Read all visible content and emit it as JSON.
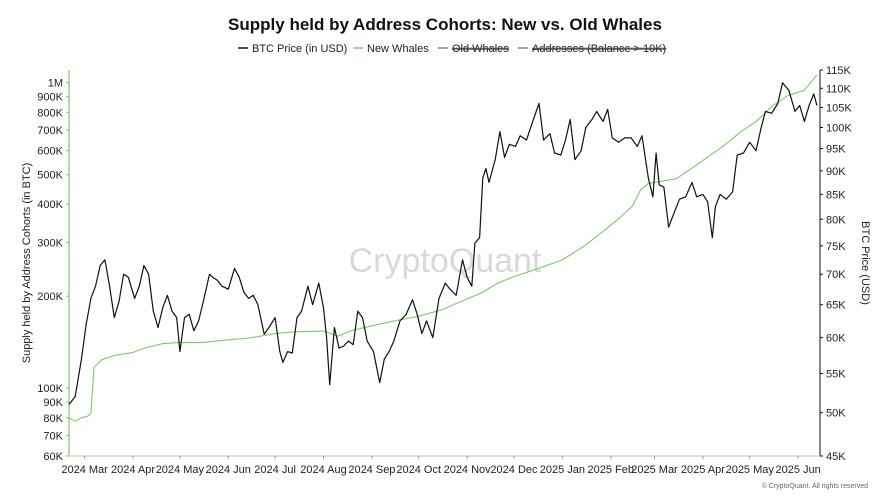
{
  "chart_data": {
    "type": "line",
    "title": "Supply held by Address Cohorts: New vs. Old Whales",
    "watermark": "CryptoQuant",
    "copyright": "© CryptoQuant. All rights reserved",
    "legend": [
      {
        "name": "BTC Price (in USD)",
        "color": "#111111",
        "hidden": false
      },
      {
        "name": "New Whales",
        "color": "#7cc96a",
        "hidden": false
      },
      {
        "name": "Old Whales",
        "color": "#888888",
        "hidden": true
      },
      {
        "name": "Addresses (Balance > 10K)",
        "color": "#888888",
        "hidden": true
      }
    ],
    "y_left": {
      "label": "Supply held by Address Cohorts (in BTC)",
      "scale": "log",
      "range": [
        60000,
        1100000
      ],
      "ticks": [
        {
          "v": 60000,
          "label": "60K"
        },
        {
          "v": 70000,
          "label": "70K"
        },
        {
          "v": 80000,
          "label": "80K"
        },
        {
          "v": 90000,
          "label": "90K"
        },
        {
          "v": 100000,
          "label": "100K"
        },
        {
          "v": 200000,
          "label": "200K"
        },
        {
          "v": 300000,
          "label": "300K"
        },
        {
          "v": 400000,
          "label": "400K"
        },
        {
          "v": 500000,
          "label": "500K"
        },
        {
          "v": 600000,
          "label": "600K"
        },
        {
          "v": 700000,
          "label": "700K"
        },
        {
          "v": 800000,
          "label": "800K"
        },
        {
          "v": 900000,
          "label": "900K"
        },
        {
          "v": 1000000,
          "label": "1M"
        }
      ]
    },
    "y_right": {
      "label": "BTC Price (USD)",
      "scale": "log",
      "range": [
        45000,
        115000
      ],
      "ticks": [
        {
          "v": 45000,
          "label": "45K"
        },
        {
          "v": 50000,
          "label": "50K"
        },
        {
          "v": 55000,
          "label": "55K"
        },
        {
          "v": 60000,
          "label": "60K"
        },
        {
          "v": 65000,
          "label": "65K"
        },
        {
          "v": 70000,
          "label": "70K"
        },
        {
          "v": 75000,
          "label": "75K"
        },
        {
          "v": 80000,
          "label": "80K"
        },
        {
          "v": 85000,
          "label": "85K"
        },
        {
          "v": 90000,
          "label": "90K"
        },
        {
          "v": 95000,
          "label": "95K"
        },
        {
          "v": 100000,
          "label": "100K"
        },
        {
          "v": 105000,
          "label": "105K"
        },
        {
          "v": 110000,
          "label": "110K"
        },
        {
          "v": 115000,
          "label": "115K"
        }
      ]
    },
    "x_axis": {
      "range": [
        "2024-02-20",
        "2025-06-15"
      ],
      "ticks": [
        {
          "date": "2024-03-01",
          "label": "2024 Mar"
        },
        {
          "date": "2024-04-01",
          "label": "2024 Apr"
        },
        {
          "date": "2024-05-01",
          "label": "2024 May"
        },
        {
          "date": "2024-06-01",
          "label": "2024 Jun"
        },
        {
          "date": "2024-07-01",
          "label": "2024 Jul"
        },
        {
          "date": "2024-08-01",
          "label": "2024 Aug"
        },
        {
          "date": "2024-09-01",
          "label": "2024 Sep"
        },
        {
          "date": "2024-10-01",
          "label": "2024 Oct"
        },
        {
          "date": "2024-11-01",
          "label": "2024 Nov"
        },
        {
          "date": "2024-12-01",
          "label": "2024 Dec"
        },
        {
          "date": "2025-01-01",
          "label": "2025 Jan"
        },
        {
          "date": "2025-02-01",
          "label": "2025 Feb"
        },
        {
          "date": "2025-03-01",
          "label": "2025 Mar"
        },
        {
          "date": "2025-04-01",
          "label": "2025 Apr"
        },
        {
          "date": "2025-05-01",
          "label": "2025 May"
        },
        {
          "date": "2025-06-01",
          "label": "2025 Jun"
        }
      ]
    },
    "grid": false,
    "legend_position": "top",
    "series": [
      {
        "name": "BTC Price (in USD)",
        "axis": "right",
        "color": "#111111",
        "points": [
          [
            "2024-02-20",
            51000
          ],
          [
            "2024-02-24",
            52000
          ],
          [
            "2024-02-28",
            57000
          ],
          [
            "2024-03-02",
            62000
          ],
          [
            "2024-03-05",
            66000
          ],
          [
            "2024-03-08",
            68000
          ],
          [
            "2024-03-11",
            71500
          ],
          [
            "2024-03-14",
            72500
          ],
          [
            "2024-03-17",
            68000
          ],
          [
            "2024-03-20",
            63000
          ],
          [
            "2024-03-23",
            65500
          ],
          [
            "2024-03-26",
            70000
          ],
          [
            "2024-03-29",
            69500
          ],
          [
            "2024-04-02",
            66000
          ],
          [
            "2024-04-05",
            68000
          ],
          [
            "2024-04-08",
            71500
          ],
          [
            "2024-04-11",
            70000
          ],
          [
            "2024-04-14",
            64000
          ],
          [
            "2024-04-17",
            61500
          ],
          [
            "2024-04-20",
            64500
          ],
          [
            "2024-04-23",
            66500
          ],
          [
            "2024-04-26",
            64000
          ],
          [
            "2024-04-29",
            63000
          ],
          [
            "2024-05-01",
            58000
          ],
          [
            "2024-05-04",
            63000
          ],
          [
            "2024-05-07",
            63500
          ],
          [
            "2024-05-10",
            61000
          ],
          [
            "2024-05-13",
            62500
          ],
          [
            "2024-05-16",
            65500
          ],
          [
            "2024-05-20",
            70000
          ],
          [
            "2024-05-22",
            69500
          ],
          [
            "2024-05-25",
            69000
          ],
          [
            "2024-05-28",
            68000
          ],
          [
            "2024-06-01",
            67500
          ],
          [
            "2024-06-05",
            71000
          ],
          [
            "2024-06-08",
            69500
          ],
          [
            "2024-06-11",
            67000
          ],
          [
            "2024-06-14",
            66000
          ],
          [
            "2024-06-17",
            66500
          ],
          [
            "2024-06-20",
            65000
          ],
          [
            "2024-06-24",
            60500
          ],
          [
            "2024-06-27",
            61500
          ],
          [
            "2024-07-01",
            63000
          ],
          [
            "2024-07-04",
            58000
          ],
          [
            "2024-07-06",
            56500
          ],
          [
            "2024-07-09",
            58000
          ],
          [
            "2024-07-12",
            57800
          ],
          [
            "2024-07-15",
            63000
          ],
          [
            "2024-07-18",
            64000
          ],
          [
            "2024-07-22",
            68000
          ],
          [
            "2024-07-25",
            65000
          ],
          [
            "2024-07-29",
            68500
          ],
          [
            "2024-08-01",
            64500
          ],
          [
            "2024-08-03",
            60000
          ],
          [
            "2024-08-05",
            53500
          ],
          [
            "2024-08-08",
            61500
          ],
          [
            "2024-08-11",
            58500
          ],
          [
            "2024-08-14",
            58800
          ],
          [
            "2024-08-17",
            59500
          ],
          [
            "2024-08-20",
            59000
          ],
          [
            "2024-08-23",
            64000
          ],
          [
            "2024-08-26",
            63000
          ],
          [
            "2024-08-29",
            59500
          ],
          [
            "2024-09-02",
            58000
          ],
          [
            "2024-09-06",
            53800
          ],
          [
            "2024-09-09",
            57000
          ],
          [
            "2024-09-12",
            58000
          ],
          [
            "2024-09-15",
            59500
          ],
          [
            "2024-09-19",
            62500
          ],
          [
            "2024-09-23",
            63500
          ],
          [
            "2024-09-27",
            65800
          ],
          [
            "2024-09-30",
            63500
          ],
          [
            "2024-10-03",
            60600
          ],
          [
            "2024-10-06",
            62500
          ],
          [
            "2024-10-10",
            60000
          ],
          [
            "2024-10-14",
            66000
          ],
          [
            "2024-10-18",
            68500
          ],
          [
            "2024-10-21",
            67500
          ],
          [
            "2024-10-25",
            66500
          ],
          [
            "2024-10-29",
            72500
          ],
          [
            "2024-11-01",
            69500
          ],
          [
            "2024-11-04",
            68000
          ],
          [
            "2024-11-06",
            75500
          ],
          [
            "2024-11-09",
            76500
          ],
          [
            "2024-11-11",
            88500
          ],
          [
            "2024-11-13",
            90500
          ],
          [
            "2024-11-15",
            87500
          ],
          [
            "2024-11-19",
            92500
          ],
          [
            "2024-11-22",
            99000
          ],
          [
            "2024-11-25",
            93000
          ],
          [
            "2024-11-28",
            96000
          ],
          [
            "2024-12-02",
            95500
          ],
          [
            "2024-12-05",
            98000
          ],
          [
            "2024-12-09",
            97000
          ],
          [
            "2024-12-13",
            101500
          ],
          [
            "2024-12-17",
            106000
          ],
          [
            "2024-12-20",
            97000
          ],
          [
            "2024-12-24",
            98500
          ],
          [
            "2024-12-27",
            94000
          ],
          [
            "2024-12-31",
            93500
          ],
          [
            "2025-01-03",
            97000
          ],
          [
            "2025-01-06",
            102000
          ],
          [
            "2025-01-09",
            92500
          ],
          [
            "2025-01-13",
            94500
          ],
          [
            "2025-01-16",
            100000
          ],
          [
            "2025-01-20",
            102000
          ],
          [
            "2025-01-23",
            104000
          ],
          [
            "2025-01-27",
            101500
          ],
          [
            "2025-01-30",
            104500
          ],
          [
            "2025-02-02",
            97500
          ],
          [
            "2025-02-06",
            96500
          ],
          [
            "2025-02-10",
            97500
          ],
          [
            "2025-02-14",
            97500
          ],
          [
            "2025-02-18",
            95500
          ],
          [
            "2025-02-21",
            98000
          ],
          [
            "2025-02-25",
            88500
          ],
          [
            "2025-02-28",
            84500
          ],
          [
            "2025-03-02",
            94000
          ],
          [
            "2025-03-04",
            87000
          ],
          [
            "2025-03-07",
            86500
          ],
          [
            "2025-03-10",
            78500
          ],
          [
            "2025-03-13",
            80800
          ],
          [
            "2025-03-17",
            84000
          ],
          [
            "2025-03-21",
            84500
          ],
          [
            "2025-03-25",
            87500
          ],
          [
            "2025-03-28",
            84500
          ],
          [
            "2025-04-01",
            85000
          ],
          [
            "2025-04-04",
            83500
          ],
          [
            "2025-04-07",
            76500
          ],
          [
            "2025-04-09",
            82500
          ],
          [
            "2025-04-12",
            85000
          ],
          [
            "2025-04-16",
            84000
          ],
          [
            "2025-04-20",
            85500
          ],
          [
            "2025-04-23",
            93500
          ],
          [
            "2025-04-27",
            94000
          ],
          [
            "2025-05-01",
            96500
          ],
          [
            "2025-05-05",
            94500
          ],
          [
            "2025-05-08",
            99500
          ],
          [
            "2025-05-11",
            104000
          ],
          [
            "2025-05-15",
            103500
          ],
          [
            "2025-05-19",
            106000
          ],
          [
            "2025-05-22",
            111500
          ],
          [
            "2025-05-26",
            109500
          ],
          [
            "2025-05-30",
            104000
          ],
          [
            "2025-06-02",
            105500
          ],
          [
            "2025-06-05",
            101500
          ],
          [
            "2025-06-08",
            105500
          ],
          [
            "2025-06-11",
            108500
          ],
          [
            "2025-06-13",
            105500
          ]
        ]
      },
      {
        "name": "New Whales",
        "axis": "left",
        "color": "#7cc96a",
        "points": [
          [
            "2024-02-20",
            80000
          ],
          [
            "2024-02-24",
            78000
          ],
          [
            "2024-02-28",
            80000
          ],
          [
            "2024-03-03",
            81000
          ],
          [
            "2024-03-05",
            83000
          ],
          [
            "2024-03-07",
            117000
          ],
          [
            "2024-03-12",
            124000
          ],
          [
            "2024-03-20",
            128000
          ],
          [
            "2024-04-01",
            131000
          ],
          [
            "2024-04-10",
            136000
          ],
          [
            "2024-04-20",
            140000
          ],
          [
            "2024-05-01",
            141000
          ],
          [
            "2024-05-15",
            141000
          ],
          [
            "2024-06-01",
            144000
          ],
          [
            "2024-06-15",
            146000
          ],
          [
            "2024-07-01",
            151000
          ],
          [
            "2024-07-15",
            153000
          ],
          [
            "2024-08-01",
            154000
          ],
          [
            "2024-08-10",
            148000
          ],
          [
            "2024-08-20",
            155000
          ],
          [
            "2024-09-01",
            160000
          ],
          [
            "2024-09-15",
            166000
          ],
          [
            "2024-10-01",
            172000
          ],
          [
            "2024-10-15",
            180000
          ],
          [
            "2024-11-01",
            196000
          ],
          [
            "2024-11-10",
            205000
          ],
          [
            "2024-11-20",
            220000
          ],
          [
            "2024-12-01",
            232000
          ],
          [
            "2024-12-10",
            240000
          ],
          [
            "2024-12-20",
            250000
          ],
          [
            "2025-01-01",
            263000
          ],
          [
            "2025-01-15",
            292000
          ],
          [
            "2025-01-25",
            320000
          ],
          [
            "2025-02-05",
            355000
          ],
          [
            "2025-02-15",
            395000
          ],
          [
            "2025-02-20",
            445000
          ],
          [
            "2025-02-25",
            468000
          ],
          [
            "2025-03-05",
            475000
          ],
          [
            "2025-03-15",
            485000
          ],
          [
            "2025-03-25",
            525000
          ],
          [
            "2025-04-05",
            575000
          ],
          [
            "2025-04-15",
            625000
          ],
          [
            "2025-04-25",
            690000
          ],
          [
            "2025-05-05",
            745000
          ],
          [
            "2025-05-15",
            835000
          ],
          [
            "2025-05-25",
            905000
          ],
          [
            "2025-06-05",
            945000
          ],
          [
            "2025-06-13",
            1060000
          ]
        ]
      }
    ]
  }
}
